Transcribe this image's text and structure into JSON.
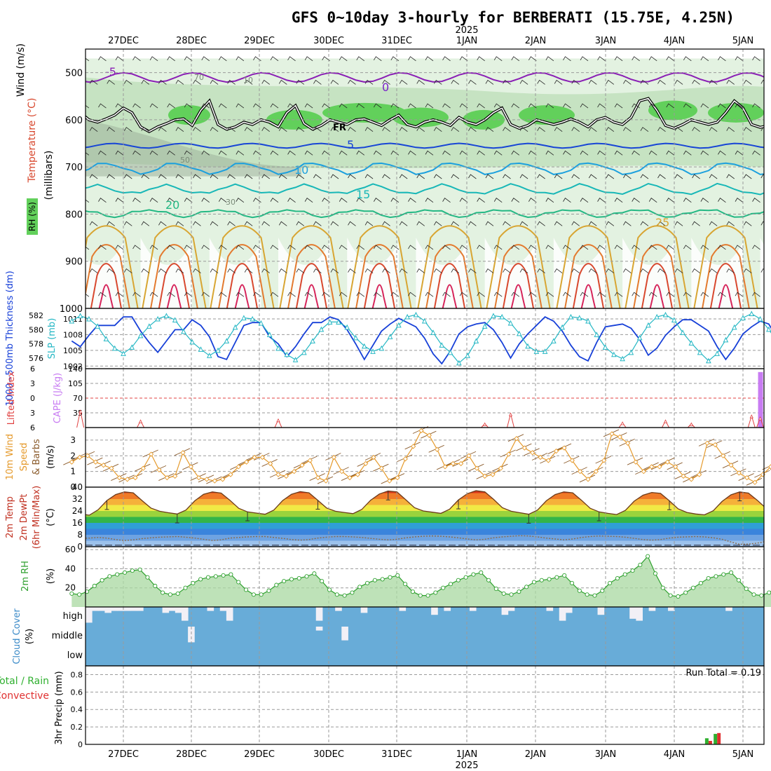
{
  "title": "GFS 0~10day 3-hourly for BERBERATI (15.75E, 4.25N)",
  "colors": {
    "grid": "#9a9a9a",
    "rh_light": "#e3f2e1",
    "rh_mid": "#c6e3c2",
    "rh_dark": "#62d05b",
    "geo_gray": "#9fb39c",
    "temp_m5": "#8a1fb5",
    "temp_0": "#7a22c9",
    "temp_5": "#1745d6",
    "temp_10": "#1ca0de",
    "temp_15": "#18b7b7",
    "temp_20": "#24b884",
    "temp_25": "#d8a532",
    "temp_30": "#e37a2e",
    "temp_35": "#d8482e",
    "temp_40": "#d6245a",
    "thickness": "#1740d8",
    "slp": "#25b7c4",
    "lifted": "#e04040",
    "cape": "#c87cf2",
    "wind10": "#e59a2c",
    "barb10": "#8a5a2a",
    "rh2m": "#2ea02e",
    "rh2m_fill": "#a8d8a0",
    "cloud_fill": "#68acd8",
    "cloud_bg": "#f2f0f6",
    "precip_total": "#2fb02f",
    "precip_conv": "#e03030"
  },
  "time_axis": {
    "dates_top": [
      "27DEC",
      "28DEC",
      "29DEC",
      "30DEC",
      "31DEC",
      "1JAN",
      "2JAN",
      "3JAN",
      "4JAN",
      "5JAN"
    ],
    "year_label": "2025",
    "dates_bottom": [
      "27DEC",
      "28DEC",
      "29DEC",
      "30DEC",
      "31DEC",
      "1JAN",
      "2JAN",
      "3JAN",
      "4JAN",
      "5JAN"
    ],
    "step_hours": 3
  },
  "panel_labels": {
    "p1_wind": "Wind (m/s)",
    "p1_temp": "Temperature (°C)",
    "p1_rh": "RH (%)",
    "p1_mb": "(millibars)",
    "p2_thickness": "1000~500mb Thickness (dm)",
    "p2_slp": "SLP (mb)",
    "p3_lifted": "Lifted Index",
    "p3_cape": "CAPE (J/kg)",
    "p4_a": "10m Wind",
    "p4_b": "Speed",
    "p4_c": "& Barbs",
    "p4_unit": "(m/s)",
    "p5_a": "2m Temp",
    "p5_b": "2m DewPt",
    "p5_c": "(6hr Min/Max)",
    "p5_unit": "(°C)",
    "p6_a": "2m RH",
    "p6_unit": "(%)",
    "p7_a": "Cloud Cover",
    "p7_unit": "(%)",
    "p8_total": "Total / Rain",
    "p8_conv": "Convective",
    "p8_a": "3hr Precip (mm)",
    "run_total": "Run Total = 0.19"
  },
  "chart_data": [
    {
      "type": "heatmap",
      "panel": "upper-air cross-section",
      "y_label": "(millibars)",
      "y_ticks": [
        500,
        600,
        700,
        800,
        900,
        1000
      ],
      "ylim": [
        450,
        1000
      ],
      "contour_labels": {
        "temperature": [
          "-5",
          "0",
          "5",
          "10",
          "15",
          "20",
          "25"
        ],
        "rh": [
          "10",
          "30",
          "50",
          "70"
        ],
        "freezing_level": "FR"
      },
      "freezing_level_mb": [
        552,
        560,
        570,
        585,
        600,
        605,
        598,
        590,
        575,
        585,
        615,
        625,
        615,
        608,
        600,
        598,
        612,
        580,
        560,
        610,
        620,
        615,
        605,
        610,
        600,
        605,
        615,
        585,
        570,
        608,
        620,
        612,
        600,
        605,
        610,
        600,
        598,
        605,
        612,
        600,
        590,
        610,
        615,
        605,
        600,
        605,
        612,
        595,
        605,
        610,
        600,
        585,
        575,
        610,
        618,
        612,
        600,
        605,
        610,
        605,
        598,
        605,
        615,
        600,
        595,
        605,
        610,
        595,
        560,
        555,
        580,
        612,
        618,
        610,
        600,
        605,
        610,
        605,
        585,
        560,
        575,
        610,
        616,
        612,
        605,
        608,
        610,
        605,
        600,
        605,
        612,
        605
      ]
    },
    {
      "type": "line",
      "panel": "thickness & slp",
      "series": [
        {
          "name": "1000~500mb Thickness (dm)",
          "axis": "left",
          "ylim": [
            574.5,
            583
          ],
          "ticks": [
            576,
            578,
            580,
            582
          ],
          "values": [
            578.4,
            577.6,
            579.2,
            580.6,
            580.6,
            580.6,
            581.8,
            581.8,
            579.8,
            578.2,
            576.8,
            578.4,
            580.0,
            580.0,
            581.4,
            580.6,
            579.0,
            576.2,
            575.8,
            578.2,
            580.6,
            581.0,
            581.0,
            579.0,
            578.0,
            576.2,
            577.6,
            579.4,
            581.0,
            581.0,
            581.8,
            581.4,
            580.0,
            578.0,
            575.8,
            577.8,
            579.8,
            580.8,
            581.6,
            581.0,
            580.4,
            578.8,
            576.6,
            575.2,
            577.0,
            579.4,
            580.4,
            580.8,
            581.0,
            580.0,
            578.2,
            576.0,
            578.0,
            579.4,
            580.6,
            581.8,
            581.2,
            579.8,
            577.8,
            576.2,
            575.6,
            578.2,
            580.4,
            580.6,
            580.8,
            580.2,
            578.6,
            576.4,
            577.4,
            579.2,
            580.4,
            581.4,
            581.4,
            580.6,
            579.8,
            577.6,
            575.8,
            577.4,
            579.4,
            580.4,
            581.2,
            580.8,
            578.8,
            576.2,
            576.0,
            577.8,
            578.6,
            578.6,
            579.2,
            580.0
          ]
        },
        {
          "name": "SLP (mb)",
          "axis": "right",
          "ylim": [
            1001.5,
            1013
          ],
          "ticks": [
            1002,
            1005,
            1008,
            1011
          ],
          "values": [
            1010.6,
            1011.6,
            1011.0,
            1009.6,
            1007.2,
            1005.4,
            1004.4,
            1005.6,
            1007.8,
            1009.6,
            1011.0,
            1011.6,
            1010.8,
            1008.6,
            1006.6,
            1005.2,
            1004.0,
            1005.0,
            1006.8,
            1009.4,
            1011.2,
            1011.0,
            1010.2,
            1008.0,
            1005.4,
            1004.2,
            1003.2,
            1004.6,
            1006.8,
            1009.0,
            1010.4,
            1010.4,
            1009.4,
            1007.4,
            1005.8,
            1004.8,
            1005.4,
            1007.6,
            1009.8,
            1011.4,
            1011.8,
            1010.6,
            1008.4,
            1006.0,
            1004.6,
            1002.6,
            1004.0,
            1006.8,
            1009.6,
            1011.6,
            1011.4,
            1010.2,
            1008.2,
            1005.8,
            1004.8,
            1004.8,
            1006.8,
            1009.4,
            1011.4,
            1011.2,
            1010.6,
            1008.0,
            1005.6,
            1004.2,
            1003.4,
            1004.6,
            1007.4,
            1009.8,
            1011.4,
            1011.8,
            1010.8,
            1008.4,
            1006.4,
            1004.6,
            1003.0,
            1004.4,
            1007.0,
            1009.4,
            1011.2,
            1012.0,
            1011.0,
            1009.0,
            1006.6,
            1005.2,
            1004.4,
            1005.2,
            1007.4,
            1009.6,
            1010.8,
            1011.2,
            1009.4,
            1006.4,
            1004.8,
            1003.6
          ]
        }
      ]
    },
    {
      "type": "bar",
      "panel": "lifted index & cape",
      "lifted_ticks": [
        -6,
        -3,
        0,
        3,
        6
      ],
      "cape_ticks": [
        35,
        70,
        105,
        140
      ],
      "cape_ylim": [
        0,
        140
      ],
      "cape_bars": [
        {
          "time_index": 80,
          "value": 132
        },
        {
          "time_index": 89,
          "value": 17
        },
        {
          "time_index": 92,
          "value": 30
        },
        {
          "time_index": 93,
          "value": 37
        }
      ],
      "lifted_peaks": [
        {
          "time_index": 1,
          "value": 2.6
        },
        {
          "time_index": 8,
          "value": 4.6
        },
        {
          "time_index": 24,
          "value": 4.4
        },
        {
          "time_index": 48,
          "value": 5.2
        },
        {
          "time_index": 51,
          "value": 3.2
        },
        {
          "time_index": 64,
          "value": 5.0
        },
        {
          "time_index": 69,
          "value": 4.6
        },
        {
          "time_index": 72,
          "value": 5.2
        },
        {
          "time_index": 79,
          "value": 3.6
        },
        {
          "time_index": 80,
          "value": 4.0
        },
        {
          "time_index": 82,
          "value": 4.6
        },
        {
          "time_index": 88,
          "value": 4.8
        }
      ]
    },
    {
      "type": "line",
      "panel": "10m wind",
      "ylim": [
        0,
        3.8
      ],
      "ticks": [
        0,
        1,
        2,
        3
      ],
      "values": [
        1.6,
        1.9,
        2.0,
        1.6,
        1.4,
        1.2,
        0.6,
        0.5,
        0.6,
        1.2,
        2.1,
        1.1,
        0.6,
        0.7,
        2.2,
        1.3,
        0.6,
        0.5,
        0.4,
        0.5,
        0.8,
        1.3,
        1.6,
        1.9,
        1.9,
        1.5,
        0.8,
        0.7,
        1.0,
        1.4,
        1.7,
        0.6,
        0.4,
        1.9,
        1.0,
        0.6,
        0.8,
        1.5,
        1.9,
        1.2,
        0.4,
        0.6,
        1.8,
        2.6,
        3.6,
        3.3,
        2.4,
        1.3,
        1.5,
        1.5,
        2.0,
        1.2,
        0.7,
        0.8,
        1.2,
        2.1,
        3.1,
        2.5,
        2.2,
        1.9,
        1.7,
        2.3,
        2.5,
        1.7,
        1.0,
        0.5,
        1.0,
        1.7,
        3.4,
        3.2,
        2.8,
        1.6,
        1.0,
        1.3,
        1.3,
        1.6,
        1.3,
        0.7,
        0.5,
        0.8,
        2.8,
        2.7,
        2.0,
        1.4,
        0.9,
        0.6,
        0.3,
        0.8,
        1.3,
        1.3,
        1.2,
        0.7,
        1.0,
        0.7,
        0.5,
        1.0,
        1.3,
        1.8,
        2.0,
        2.1,
        1.6,
        1.4,
        2.0
      ]
    },
    {
      "type": "area",
      "panel": "2m temp & dewpt",
      "ylim": [
        0,
        40
      ],
      "ticks": [
        0,
        8,
        16,
        24,
        32,
        40
      ],
      "temp": [
        23.2,
        22.0,
        21.2,
        24.8,
        31.0,
        35.0,
        36.8,
        36.2,
        31.0,
        26.0,
        23.8,
        22.8,
        22.0,
        24.6,
        30.8,
        35.2,
        36.8,
        36.0,
        31.2,
        25.8,
        23.4,
        22.6,
        21.8,
        24.6,
        31.0,
        35.2,
        37.0,
        36.2,
        31.2,
        26.0,
        23.8,
        23.0,
        22.2,
        25.0,
        31.2,
        35.4,
        37.4,
        36.8,
        31.6,
        26.2,
        24.0,
        23.2,
        22.4,
        25.2,
        31.4,
        35.6,
        37.6,
        36.8,
        31.8,
        26.2,
        23.8,
        22.8,
        21.8,
        24.6,
        30.8,
        35.0,
        36.8,
        36.2,
        31.2,
        25.8,
        23.4,
        22.4,
        21.6,
        24.4,
        30.6,
        34.6,
        36.4,
        35.8,
        30.8,
        25.4,
        23.0,
        22.0,
        21.4,
        24.2,
        30.4,
        34.8,
        36.8,
        36.0,
        31.2,
        25.8,
        23.2,
        22.0,
        21.4,
        24.6,
        31.0,
        35.6,
        37.8,
        36.8,
        31.2,
        26.0,
        23.6,
        22.8,
        22.0,
        21.6,
        22.2
      ],
      "dewpt": [
        5.4,
        5.6,
        5.8,
        6.2,
        5.8,
        4.8,
        4.2,
        4.6,
        5.4,
        6.0,
        6.4,
        6.6,
        6.8,
        6.4,
        5.8,
        5.0,
        4.2,
        4.6,
        5.8,
        6.2,
        6.6,
        6.8,
        6.8,
        6.2,
        5.6,
        4.8,
        4.4,
        4.8,
        5.8,
        6.4,
        6.8,
        6.8,
        6.6,
        6.2,
        5.6,
        5.0,
        4.6,
        5.0,
        6.0,
        6.6,
        7.0,
        7.2,
        7.0,
        6.6,
        6.0,
        5.2,
        4.6,
        5.0,
        6.0,
        6.6,
        7.0,
        7.4,
        7.2,
        6.6,
        5.8,
        5.2,
        4.6,
        5.2,
        6.2,
        6.8,
        7.2,
        7.0,
        6.8,
        6.4,
        5.6,
        4.8,
        4.4,
        4.8,
        5.8,
        6.4,
        6.6,
        6.8,
        6.6,
        6.0,
        5.0,
        3.2,
        1.6,
        1.8,
        2.4,
        3.6,
        5.4,
        6.8,
        9.0,
        11.0,
        9.4,
        5.2,
        3.6,
        4.2,
        4.8,
        5.4,
        6.2,
        7.4,
        9.8,
        12.4,
        11.4
      ]
    },
    {
      "type": "area",
      "panel": "2m rh",
      "ylim": [
        0,
        63
      ],
      "ticks": [
        20,
        40,
        60
      ],
      "values": [
        14.0,
        13.0,
        16.0,
        22.0,
        28.0,
        32.0,
        34.0,
        36.0,
        38.0,
        39.0,
        31.0,
        22.0,
        15.0,
        13.0,
        14.0,
        20.0,
        25.0,
        29.0,
        31.0,
        32.0,
        33.0,
        34.0,
        26.0,
        18.0,
        13.0,
        13.0,
        17.0,
        23.0,
        27.0,
        29.0,
        30.0,
        32.0,
        35.0,
        27.0,
        18.0,
        13.0,
        12.0,
        15.0,
        21.0,
        25.0,
        28.0,
        29.0,
        31.0,
        33.0,
        24.0,
        16.0,
        12.0,
        12.0,
        15.0,
        20.0,
        24.0,
        28.0,
        31.0,
        34.0,
        36.0,
        28.0,
        19.0,
        14.0,
        13.0,
        16.0,
        21.0,
        26.0,
        28.0,
        29.0,
        31.0,
        33.0,
        25.0,
        17.0,
        13.0,
        12.0,
        17.0,
        25.0,
        30.0,
        34.0,
        38.0,
        44.0,
        53.0,
        35.0,
        20.0,
        12.0,
        11.0,
        15.0,
        20.0,
        25.0,
        30.0,
        32.0,
        34.0,
        36.0,
        28.0,
        19.0,
        13.0,
        12.0,
        15.0,
        20.0,
        25.0,
        29.0,
        33.0,
        37.0,
        42.0,
        33.0,
        22.0,
        14.0,
        13.0,
        15.0,
        20.0,
        24.0,
        26.0,
        40.0,
        57.0,
        61.0
      ]
    },
    {
      "type": "bar",
      "panel": "cloud cover",
      "categories": [
        "high",
        "middle",
        "low"
      ],
      "note": "fraction of each row filled, per time step",
      "high": [
        0.8,
        0.2,
        0.2,
        0.3,
        0.2,
        0.2,
        0.2,
        0.2,
        0.2,
        0.0,
        0.0,
        0.0,
        0.3,
        0.2,
        0.3,
        0.7,
        0.0,
        0.0,
        0.0,
        0.2,
        0.0,
        0.2,
        0.7,
        0.0,
        0.0,
        0.0,
        0.0,
        0.0,
        0.0,
        0.0,
        0.0,
        0.0,
        0.0,
        0.0,
        0.0,
        0.0,
        0.7,
        0.0,
        0.0,
        0.2,
        0.0,
        0.0,
        0.0,
        0.3,
        0.0,
        0.0,
        0.0,
        0.0,
        0.0,
        0.2,
        0.0,
        0.0,
        0.0,
        0.0,
        0.4,
        0.0,
        0.2,
        0.0,
        0.0,
        0.0,
        0.2,
        0.0,
        0.0,
        0.0,
        0.0,
        0.4,
        0.2,
        0.0,
        0.0,
        0.0,
        0.0,
        0.0,
        0.2,
        0.0,
        0.7,
        0.3,
        0.0,
        0.0,
        0.0,
        0.0,
        0.4,
        0.0,
        0.0,
        0.0,
        0.0,
        0.6,
        0.7,
        0.0,
        0.2,
        0.0,
        0.0,
        0.2,
        0.0,
        0.0,
        0.0,
        0.0,
        0.0,
        0.0,
        0.0,
        0.0,
        0.2,
        0.0,
        0.0,
        0.0,
        0.0,
        0.0
      ],
      "middle": [
        0.0,
        0.0,
        0.0,
        0.0,
        0.0,
        0.0,
        0.0,
        0.0,
        0.0,
        0.0,
        0.0,
        0.0,
        0.0,
        0.0,
        0.0,
        0.0,
        0.8,
        0.0,
        0.0,
        0.0,
        0.0,
        0.0,
        0.0,
        0.0,
        0.0,
        0.0,
        0.0,
        0.0,
        0.0,
        0.0,
        0.0,
        0.0,
        0.0,
        0.0,
        0.0,
        0.0,
        0.2,
        0.0,
        0.0,
        0.0,
        0.7,
        0.0,
        0.0,
        0.0,
        0.0,
        0.0,
        0.0,
        0.0,
        0.0,
        0.0,
        0.0,
        0.0,
        0.0,
        0.0,
        0.0,
        0.0,
        0.0,
        0.0,
        0.0,
        0.0,
        0.0,
        0.0,
        0.0,
        0.0,
        0.0,
        0.0,
        0.0,
        0.0,
        0.0,
        0.0,
        0.0,
        0.0,
        0.0,
        0.0,
        0.0,
        0.0,
        0.0,
        0.0,
        0.0,
        0.0,
        0.0,
        0.0,
        0.0,
        0.0,
        0.0,
        0.0,
        0.0,
        0.0,
        0.0,
        0.0,
        0.0,
        0.0,
        0.0,
        0.0,
        0.0,
        0.0,
        0.0,
        0.0,
        0.0,
        0.0,
        0.0,
        0.0,
        0.0,
        0.0,
        0.0,
        0.0
      ]
    },
    {
      "type": "bar",
      "panel": "3hr precip",
      "ylim": [
        0,
        0.9
      ],
      "ticks": [
        0,
        0.2,
        0.4,
        0.6,
        0.8
      ],
      "bars": [
        {
          "time_index": 74,
          "total": 0.07,
          "convective": 0.04
        },
        {
          "time_index": 75,
          "total": 0.12,
          "convective": 0.13
        }
      ]
    }
  ]
}
